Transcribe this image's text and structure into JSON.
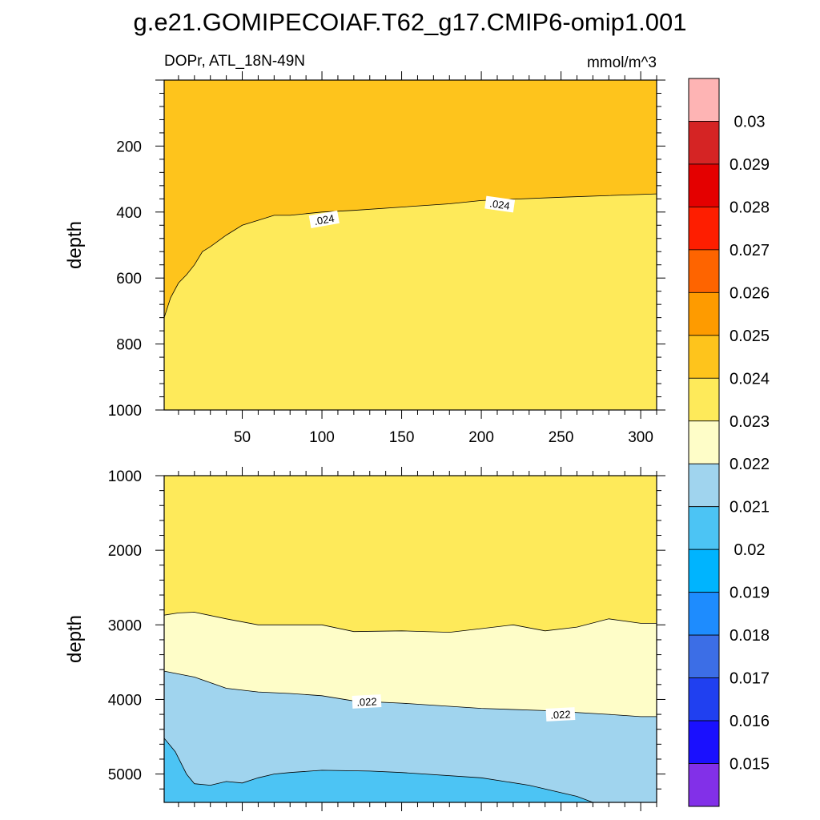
{
  "title": "g.e21.GOMIPECOIAF.T62_g17.CMIP6-omip1.001",
  "subtitle_left": "DOPr, ATL_18N-49N",
  "subtitle_right": "mmol/m^3",
  "chart_data": [
    {
      "type": "contour",
      "panel": "top",
      "ylabel": "depth",
      "xlim": [
        1,
        310
      ],
      "ylim": [
        1000,
        0
      ],
      "x_ticks": [
        50,
        100,
        150,
        200,
        250,
        300
      ],
      "y_ticks": [
        200,
        400,
        600,
        800,
        1000
      ],
      "contour_labels": [
        ".024",
        ".024"
      ],
      "regions": [
        {
          "range": "0.024-0.025",
          "color": "#fec41c",
          "position": "shallow"
        },
        {
          "range": "0.023-0.024",
          "color": "#feea5a",
          "position": "deep"
        }
      ],
      "contours": [
        {
          "level": 0.024,
          "x": [
            1,
            5,
            10,
            15,
            20,
            25,
            30,
            40,
            50,
            60,
            70,
            80,
            100,
            120,
            150,
            180,
            200,
            250,
            310
          ],
          "y": [
            720,
            660,
            615,
            590,
            560,
            520,
            505,
            470,
            440,
            425,
            410,
            410,
            400,
            395,
            385,
            375,
            365,
            355,
            345
          ]
        }
      ]
    },
    {
      "type": "contour",
      "panel": "bottom",
      "ylabel": "depth",
      "xlim": [
        1,
        310
      ],
      "ylim": [
        5380,
        1000
      ],
      "y_ticks": [
        1000,
        2000,
        3000,
        4000,
        5000
      ],
      "contour_labels": [
        ".022",
        ".022"
      ],
      "regions": [
        {
          "range": "0.023-0.024",
          "color": "#feea5a"
        },
        {
          "range": "0.022-0.023",
          "color": "#fefdc8"
        },
        {
          "range": "0.021-0.022",
          "color": "#a0d4ee"
        },
        {
          "range": "0.02-0.021",
          "color": "#4cc4f4"
        }
      ],
      "contours": [
        {
          "level": 0.023,
          "x": [
            1,
            10,
            20,
            40,
            60,
            80,
            100,
            120,
            150,
            180,
            200,
            220,
            240,
            260,
            280,
            300,
            310
          ],
          "y": [
            2870,
            2840,
            2830,
            2920,
            3000,
            3000,
            3000,
            3090,
            3080,
            3100,
            3050,
            3000,
            3080,
            3030,
            2920,
            2980,
            2980
          ]
        },
        {
          "level": 0.022,
          "x": [
            1,
            20,
            40,
            60,
            80,
            100,
            120,
            150,
            200,
            240,
            280,
            300,
            310
          ],
          "y": [
            3620,
            3700,
            3850,
            3900,
            3920,
            3950,
            4020,
            4050,
            4120,
            4150,
            4200,
            4230,
            4230
          ]
        },
        {
          "level": 0.021,
          "x": [
            1,
            8,
            15,
            20,
            30,
            40,
            50,
            60,
            70,
            80,
            100,
            130,
            150,
            200,
            230,
            260,
            270
          ],
          "y": [
            4520,
            4700,
            5000,
            5130,
            5150,
            5100,
            5120,
            5050,
            5000,
            4980,
            4950,
            4960,
            4980,
            5050,
            5150,
            5300,
            5380
          ]
        }
      ]
    }
  ],
  "colorbar": {
    "labels": [
      "0.03",
      "0.029",
      "0.028",
      "0.027",
      "0.026",
      "0.025",
      "0.024",
      "0.023",
      "0.022",
      "0.021",
      "0.02",
      "0.019",
      "0.018",
      "0.017",
      "0.016",
      "0.015"
    ],
    "colors_top_to_bottom": [
      "#feb4b4",
      "#d52424",
      "#e40000",
      "#fe1e00",
      "#fe6400",
      "#fe9b00",
      "#fec41c",
      "#feea5a",
      "#fefdc8",
      "#a0d4ee",
      "#4cc4f4",
      "#00b4fe",
      "#1e8cfe",
      "#3c6ee6",
      "#2040f0",
      "#1a10fe",
      "#8230e8"
    ]
  }
}
